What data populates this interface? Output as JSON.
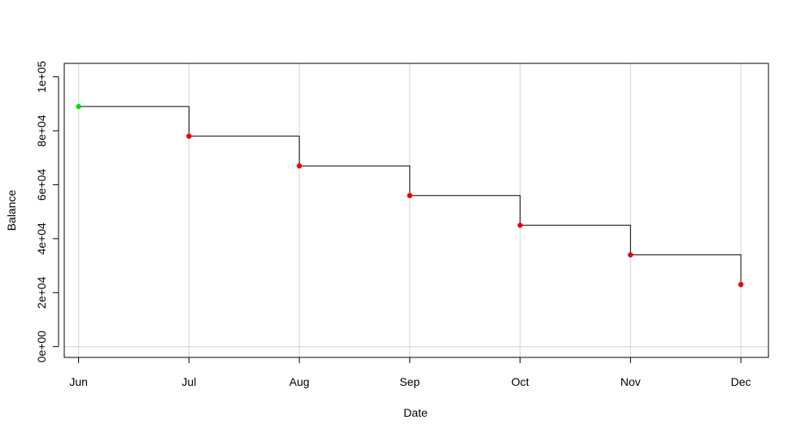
{
  "chart_data": {
    "type": "line",
    "step": true,
    "title": "",
    "xlabel": "Date",
    "ylabel": "Balance",
    "x": [
      "Jun",
      "Jul",
      "Aug",
      "Sep",
      "Oct",
      "Nov",
      "Dec"
    ],
    "xlim": [
      -0.13,
      6.25
    ],
    "ylim": [
      -4000,
      105000
    ],
    "yticks": [
      0,
      20000,
      40000,
      60000,
      80000,
      100000
    ],
    "ytick_labels": [
      "0e+00",
      "2e+04",
      "4e+04",
      "6e+04",
      "8e+04",
      "1e+05"
    ],
    "grid": true,
    "series": [
      {
        "values": [
          89000,
          78000,
          67000,
          56000,
          45000,
          34000,
          23000
        ]
      }
    ],
    "point_colors": [
      "#00dd00",
      "#ee0000",
      "#ee0000",
      "#ee0000",
      "#ee0000",
      "#ee0000",
      "#ee0000"
    ],
    "line_color": "#000000",
    "grid_color": "#d3d3d3"
  }
}
